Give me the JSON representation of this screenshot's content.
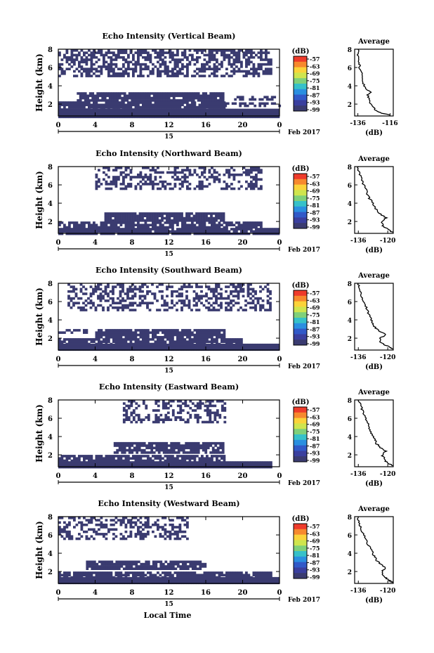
{
  "xlabel": "Local Time",
  "colorbar_unit": "(dB)",
  "colorbar_ticks": [
    "-57",
    "-63",
    "-69",
    "-75",
    "-81",
    "-87",
    "-93",
    "-99"
  ],
  "colorbar_colors": [
    "#ee3b2b",
    "#f7892e",
    "#fbd33a",
    "#cfe54e",
    "#7fd07a",
    "#36c1c9",
    "#2a8fe0",
    "#3159c8",
    "#3a3f9e",
    "#3a3b70"
  ],
  "echo_color": "#3a3b70",
  "date_day": "15",
  "date_label": "Feb 2017",
  "panels": [
    {
      "title": "Echo Intensity (Vertical Beam)",
      "avg_title": "Average",
      "avg_xticks": [
        "-136",
        "-116"
      ],
      "avg_xlim": [
        -138,
        -114
      ]
    },
    {
      "title": "Echo Intensity (Northward Beam)",
      "avg_title": "Average",
      "avg_xticks": [
        "-136",
        "-120"
      ],
      "avg_xlim": [
        -138,
        -117
      ]
    },
    {
      "title": "Echo Intensity (Southward Beam)",
      "avg_title": "Average",
      "avg_xticks": [
        "-136",
        "-120"
      ],
      "avg_xlim": [
        -138,
        -117
      ]
    },
    {
      "title": "Echo Intensity (Eastward Beam)",
      "avg_title": "Average",
      "avg_xticks": [
        "-136",
        "-120"
      ],
      "avg_xlim": [
        -138,
        -117
      ]
    },
    {
      "title": "Echo Intensity (Westward Beam)",
      "avg_title": "Average",
      "avg_xticks": [
        "-136",
        "-120"
      ],
      "avg_xlim": [
        -138,
        -117
      ]
    }
  ],
  "chart_data": {
    "type": "heatmap",
    "x_ticks": [
      "0",
      "4",
      "8",
      "12",
      "16",
      "20",
      "0"
    ],
    "x_range_hours": [
      0,
      24
    ],
    "ylabel": "Height (km)",
    "y_ticks": [
      "2",
      "4",
      "6",
      "8"
    ],
    "ylim_km": [
      0.7,
      8
    ],
    "avg_xlabel": "(dB)",
    "avg_ylim_km": [
      0.7,
      8
    ],
    "beams": [
      {
        "name": "Vertical Beam",
        "echo_regions": [
          {
            "t": [
              0,
              24
            ],
            "h": [
              0.7,
              1.5
            ],
            "density": 1.0
          },
          {
            "t": [
              0,
              18
            ],
            "h": [
              1.5,
              2.3
            ],
            "density": 0.92
          },
          {
            "t": [
              18,
              24
            ],
            "h": [
              1.7,
              2.2
            ],
            "density": 0.6
          },
          {
            "t": [
              2,
              18
            ],
            "h": [
              2.5,
              3.3
            ],
            "density": 0.9
          },
          {
            "t": [
              18,
              24
            ],
            "h": [
              2.5,
              2.9
            ],
            "density": 0.4
          },
          {
            "t": [
              0,
              23
            ],
            "h": [
              5.0,
              8.0
            ],
            "density": 0.55
          }
        ],
        "average_profile": [
          {
            "h": 0.8,
            "db": -116
          },
          {
            "h": 1.0,
            "db": -121
          },
          {
            "h": 1.3,
            "db": -125
          },
          {
            "h": 1.6,
            "db": -126
          },
          {
            "h": 2.0,
            "db": -128
          },
          {
            "h": 2.5,
            "db": -129
          },
          {
            "h": 3.0,
            "db": -130
          },
          {
            "h": 3.3,
            "db": -128
          },
          {
            "h": 3.6,
            "db": -131
          },
          {
            "h": 4.0,
            "db": -132
          },
          {
            "h": 4.5,
            "db": -133
          },
          {
            "h": 5.0,
            "db": -133
          },
          {
            "h": 5.5,
            "db": -134
          },
          {
            "h": 6.0,
            "db": -135
          },
          {
            "h": 6.5,
            "db": -135
          },
          {
            "h": 7.0,
            "db": -136
          },
          {
            "h": 7.5,
            "db": -136
          },
          {
            "h": 8.0,
            "db": -136
          }
        ]
      },
      {
        "name": "Northward Beam",
        "echo_regions": [
          {
            "t": [
              0,
              24
            ],
            "h": [
              0.7,
              1.3
            ],
            "density": 0.95
          },
          {
            "t": [
              0,
              22
            ],
            "h": [
              1.3,
              2.0
            ],
            "density": 0.8
          },
          {
            "t": [
              5,
              18
            ],
            "h": [
              2.2,
              3.0
            ],
            "density": 0.9
          },
          {
            "t": [
              4,
              22
            ],
            "h": [
              5.6,
              8.0
            ],
            "density": 0.45
          }
        ],
        "average_profile": [
          {
            "h": 0.8,
            "db": -117
          },
          {
            "h": 1.0,
            "db": -119
          },
          {
            "h": 1.3,
            "db": -121
          },
          {
            "h": 1.6,
            "db": -123
          },
          {
            "h": 2.0,
            "db": -123
          },
          {
            "h": 2.4,
            "db": -121
          },
          {
            "h": 2.8,
            "db": -124
          },
          {
            "h": 3.2,
            "db": -126
          },
          {
            "h": 3.6,
            "db": -127
          },
          {
            "h": 4.0,
            "db": -128
          },
          {
            "h": 4.5,
            "db": -130
          },
          {
            "h": 5.0,
            "db": -131
          },
          {
            "h": 5.5,
            "db": -132
          },
          {
            "h": 6.0,
            "db": -133
          },
          {
            "h": 6.5,
            "db": -134
          },
          {
            "h": 7.0,
            "db": -135
          },
          {
            "h": 7.5,
            "db": -136
          },
          {
            "h": 8.0,
            "db": -136
          }
        ]
      },
      {
        "name": "Southward Beam",
        "echo_regions": [
          {
            "t": [
              0,
              24
            ],
            "h": [
              0.7,
              1.4
            ],
            "density": 1.0
          },
          {
            "t": [
              0,
              20
            ],
            "h": [
              1.4,
              2.0
            ],
            "density": 0.85
          },
          {
            "t": [
              4,
              18
            ],
            "h": [
              2.2,
              3.0
            ],
            "density": 0.9
          },
          {
            "t": [
              0,
              3
            ],
            "h": [
              2.6,
              3.0
            ],
            "density": 0.5
          },
          {
            "t": [
              1,
              23
            ],
            "h": [
              5.0,
              8.0
            ],
            "density": 0.45
          }
        ],
        "average_profile": [
          {
            "h": 0.8,
            "db": -117
          },
          {
            "h": 1.0,
            "db": -119
          },
          {
            "h": 1.3,
            "db": -122
          },
          {
            "h": 1.6,
            "db": -124
          },
          {
            "h": 2.0,
            "db": -124
          },
          {
            "h": 2.4,
            "db": -121
          },
          {
            "h": 2.8,
            "db": -125
          },
          {
            "h": 3.2,
            "db": -127
          },
          {
            "h": 3.6,
            "db": -128
          },
          {
            "h": 4.0,
            "db": -129
          },
          {
            "h": 4.5,
            "db": -130
          },
          {
            "h": 5.0,
            "db": -131
          },
          {
            "h": 5.5,
            "db": -132
          },
          {
            "h": 6.0,
            "db": -133
          },
          {
            "h": 6.5,
            "db": -134
          },
          {
            "h": 7.0,
            "db": -135
          },
          {
            "h": 7.5,
            "db": -136
          },
          {
            "h": 8.0,
            "db": -136
          }
        ]
      },
      {
        "name": "Eastward Beam",
        "echo_regions": [
          {
            "t": [
              0,
              23
            ],
            "h": [
              0.7,
              1.3
            ],
            "density": 1.0
          },
          {
            "t": [
              0,
              18
            ],
            "h": [
              1.3,
              2.0
            ],
            "density": 0.85
          },
          {
            "t": [
              6,
              18
            ],
            "h": [
              2.3,
              3.4
            ],
            "density": 0.8
          },
          {
            "t": [
              7,
              18
            ],
            "h": [
              5.5,
              8.0
            ],
            "density": 0.45
          }
        ],
        "average_profile": [
          {
            "h": 0.8,
            "db": -117
          },
          {
            "h": 1.0,
            "db": -119
          },
          {
            "h": 1.3,
            "db": -121
          },
          {
            "h": 1.6,
            "db": -122
          },
          {
            "h": 2.0,
            "db": -123
          },
          {
            "h": 2.4,
            "db": -121
          },
          {
            "h": 2.8,
            "db": -124
          },
          {
            "h": 3.2,
            "db": -126
          },
          {
            "h": 3.6,
            "db": -127
          },
          {
            "h": 4.0,
            "db": -128
          },
          {
            "h": 4.5,
            "db": -129
          },
          {
            "h": 5.0,
            "db": -130
          },
          {
            "h": 5.5,
            "db": -131
          },
          {
            "h": 6.0,
            "db": -132
          },
          {
            "h": 6.5,
            "db": -133
          },
          {
            "h": 7.0,
            "db": -134
          },
          {
            "h": 7.5,
            "db": -135
          },
          {
            "h": 8.0,
            "db": -136
          }
        ]
      },
      {
        "name": "Westward Beam",
        "echo_regions": [
          {
            "t": [
              0,
              24
            ],
            "h": [
              0.7,
              1.4
            ],
            "density": 1.0
          },
          {
            "t": [
              0,
              23
            ],
            "h": [
              1.4,
              2.0
            ],
            "density": 0.8
          },
          {
            "t": [
              3,
              16
            ],
            "h": [
              2.4,
              3.2
            ],
            "density": 0.85
          },
          {
            "t": [
              0,
              14
            ],
            "h": [
              5.5,
              8.0
            ],
            "density": 0.45
          }
        ],
        "average_profile": [
          {
            "h": 0.8,
            "db": -117
          },
          {
            "h": 1.0,
            "db": -119
          },
          {
            "h": 1.3,
            "db": -121
          },
          {
            "h": 1.6,
            "db": -123
          },
          {
            "h": 2.0,
            "db": -123
          },
          {
            "h": 2.4,
            "db": -121
          },
          {
            "h": 2.8,
            "db": -124
          },
          {
            "h": 3.2,
            "db": -126
          },
          {
            "h": 3.6,
            "db": -127
          },
          {
            "h": 4.0,
            "db": -128
          },
          {
            "h": 4.5,
            "db": -129
          },
          {
            "h": 5.0,
            "db": -131
          },
          {
            "h": 5.5,
            "db": -132
          },
          {
            "h": 6.0,
            "db": -133
          },
          {
            "h": 6.5,
            "db": -134
          },
          {
            "h": 7.0,
            "db": -135
          },
          {
            "h": 7.5,
            "db": -136
          },
          {
            "h": 8.0,
            "db": -136
          }
        ]
      }
    ]
  }
}
